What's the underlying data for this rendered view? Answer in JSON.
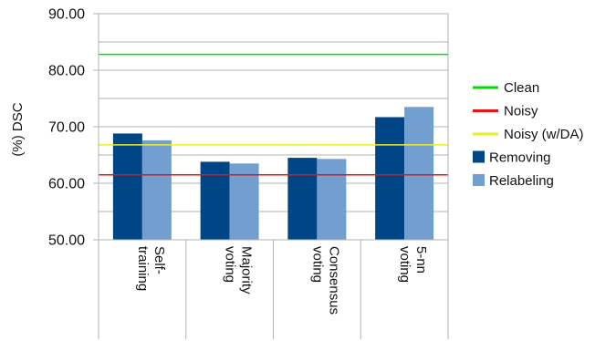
{
  "chart_data": {
    "type": "bar",
    "ylabel": "(%) DSC",
    "ylim": [
      50,
      90
    ],
    "yticks": [
      "50.00",
      "60.00",
      "70.00",
      "80.00",
      "90.00"
    ],
    "ytick_values": [
      50,
      60,
      70,
      80,
      90
    ],
    "grid": true,
    "legend_position": "right",
    "categories": [
      {
        "lines": [
          "Self-",
          "training"
        ]
      },
      {
        "lines": [
          "Majority",
          "voting"
        ]
      },
      {
        "lines": [
          "Consensus",
          "voting"
        ]
      },
      {
        "lines": [
          "5-nn",
          "voting"
        ]
      }
    ],
    "series": [
      {
        "name": "Removing",
        "color": "#004586",
        "values": [
          68.8,
          63.8,
          64.5,
          71.7
        ]
      },
      {
        "name": "Relabeling",
        "color": "#729fcf",
        "values": [
          67.6,
          63.5,
          64.3,
          73.5
        ]
      }
    ],
    "reference_lines": [
      {
        "name": "Clean",
        "color": "#00dd00",
        "value": 82.8
      },
      {
        "name": "Noisy",
        "color": "#ee1111",
        "value": 61.5
      },
      {
        "name": "Noisy (w/DA)",
        "color": "#eeee22",
        "value": 66.8
      }
    ],
    "legend_order": [
      "Clean",
      "Noisy",
      "Noisy (w/DA)",
      "Removing",
      "Relabeling"
    ]
  }
}
